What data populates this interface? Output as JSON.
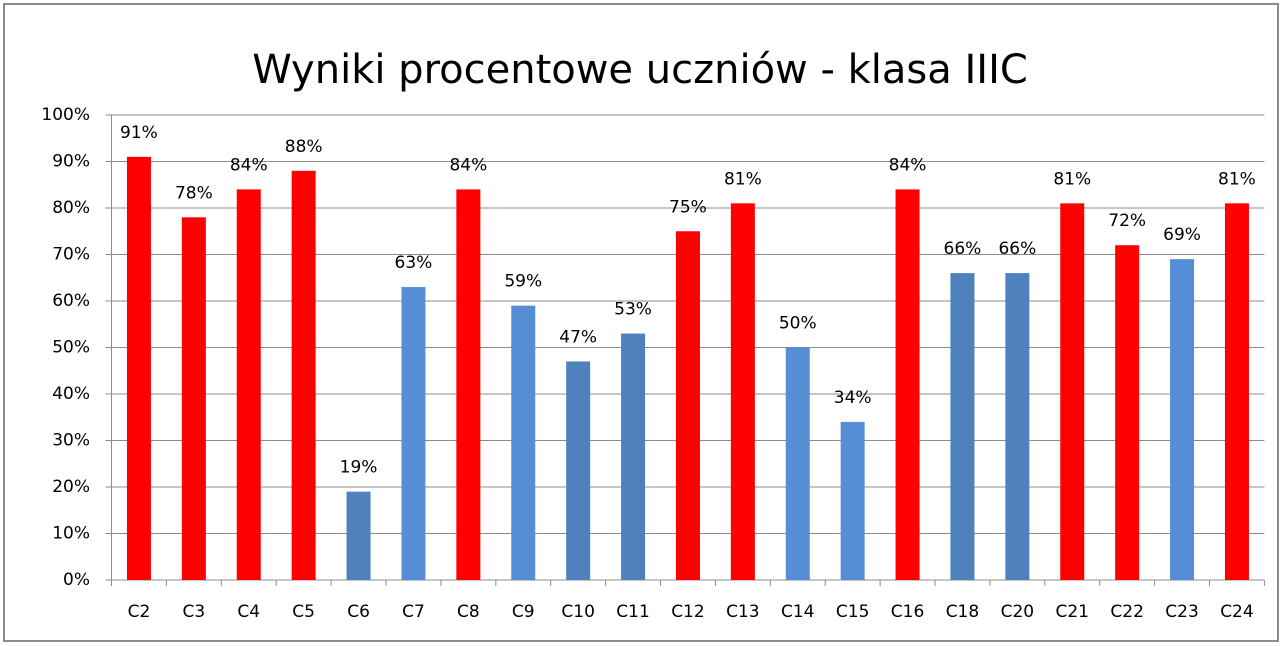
{
  "chart_data": {
    "type": "bar",
    "title": "Wyniki procentowe uczniów - klasa IIIC",
    "categories": [
      "C2",
      "C3",
      "C4",
      "C5",
      "C6",
      "C7",
      "C8",
      "C9",
      "C10",
      "C11",
      "C12",
      "C13",
      "C14",
      "C15",
      "C16",
      "C18",
      "C20",
      "C21",
      "C22",
      "C23",
      "C24"
    ],
    "values": [
      91,
      78,
      84,
      88,
      19,
      63,
      84,
      59,
      47,
      53,
      75,
      81,
      50,
      34,
      84,
      66,
      66,
      81,
      72,
      69,
      81
    ],
    "value_labels": [
      "91%",
      "78%",
      "84%",
      "88%",
      "19%",
      "63%",
      "84%",
      "59%",
      "47%",
      "53%",
      "75%",
      "81%",
      "50%",
      "34%",
      "84%",
      "66%",
      "66%",
      "81%",
      "72%",
      "69%",
      "81%"
    ],
    "colors": [
      "#ff0000",
      "#ff0000",
      "#ff0000",
      "#ff0000",
      "#4f81bd",
      "#558ed5",
      "#ff0000",
      "#558ed5",
      "#4f81bd",
      "#4f81bd",
      "#ff0000",
      "#ff0000",
      "#558ed5",
      "#558ed5",
      "#ff0000",
      "#4f81bd",
      "#4f81bd",
      "#ff0000",
      "#ff0000",
      "#558ed5",
      "#ff0000"
    ],
    "ylim": [
      0,
      100
    ],
    "yticks": [
      {
        "value": 0,
        "label": "0%"
      },
      {
        "value": 10,
        "label": "10%"
      },
      {
        "value": 20,
        "label": "20%"
      },
      {
        "value": 30,
        "label": "30%"
      },
      {
        "value": 40,
        "label": "40%"
      },
      {
        "value": 50,
        "label": "50%"
      },
      {
        "value": 60,
        "label": "60%"
      },
      {
        "value": 70,
        "label": "70%"
      },
      {
        "value": 80,
        "label": "80%"
      },
      {
        "value": 90,
        "label": "90%"
      },
      {
        "value": 100,
        "label": "100%"
      }
    ],
    "grid": true
  }
}
